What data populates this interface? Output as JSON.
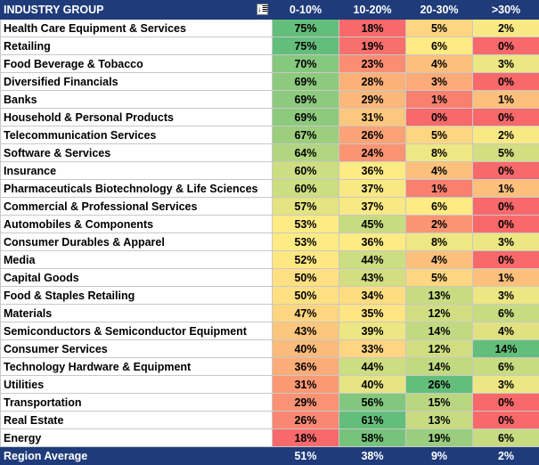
{
  "header": {
    "group_label": "INDUSTRY GROUP",
    "filter_icon": "filter-dropdown-icon",
    "columns": [
      "0-10%",
      "10-20%",
      "20-30%",
      ">30%"
    ]
  },
  "rows": [
    {
      "name": "Health Care Equipment & Services",
      "values": [
        "75%",
        "18%",
        "5%",
        "2%"
      ]
    },
    {
      "name": "Retailing",
      "values": [
        "75%",
        "19%",
        "6%",
        "0%"
      ]
    },
    {
      "name": "Food Beverage & Tobacco",
      "values": [
        "70%",
        "23%",
        "4%",
        "3%"
      ]
    },
    {
      "name": "Diversified Financials",
      "values": [
        "69%",
        "28%",
        "3%",
        "0%"
      ]
    },
    {
      "name": "Banks",
      "values": [
        "69%",
        "29%",
        "1%",
        "1%"
      ]
    },
    {
      "name": "Household & Personal Products",
      "values": [
        "69%",
        "31%",
        "0%",
        "0%"
      ]
    },
    {
      "name": "Telecommunication Services",
      "values": [
        "67%",
        "26%",
        "5%",
        "2%"
      ]
    },
    {
      "name": "Software & Services",
      "values": [
        "64%",
        "24%",
        "8%",
        "5%"
      ]
    },
    {
      "name": "Insurance",
      "values": [
        "60%",
        "36%",
        "4%",
        "0%"
      ]
    },
    {
      "name": "Pharmaceuticals Biotechnology & Life Sciences",
      "values": [
        "60%",
        "37%",
        "1%",
        "1%"
      ]
    },
    {
      "name": "Commercial & Professional Services",
      "values": [
        "57%",
        "37%",
        "6%",
        "0%"
      ]
    },
    {
      "name": "Automobiles & Components",
      "values": [
        "53%",
        "45%",
        "2%",
        "0%"
      ]
    },
    {
      "name": "Consumer Durables & Apparel",
      "values": [
        "53%",
        "36%",
        "8%",
        "3%"
      ]
    },
    {
      "name": "Media",
      "values": [
        "52%",
        "44%",
        "4%",
        "0%"
      ]
    },
    {
      "name": "Capital Goods",
      "values": [
        "50%",
        "43%",
        "5%",
        "1%"
      ]
    },
    {
      "name": "Food & Staples Retailing",
      "values": [
        "50%",
        "34%",
        "13%",
        "3%"
      ]
    },
    {
      "name": "Materials",
      "values": [
        "47%",
        "35%",
        "12%",
        "6%"
      ]
    },
    {
      "name": "Semiconductors & Semiconductor Equipment",
      "values": [
        "43%",
        "39%",
        "14%",
        "4%"
      ]
    },
    {
      "name": "Consumer Services",
      "values": [
        "40%",
        "33%",
        "12%",
        "14%"
      ]
    },
    {
      "name": "Technology Hardware & Equipment",
      "values": [
        "36%",
        "44%",
        "14%",
        "6%"
      ]
    },
    {
      "name": "Utilities",
      "values": [
        "31%",
        "40%",
        "26%",
        "3%"
      ]
    },
    {
      "name": "Transportation",
      "values": [
        "29%",
        "56%",
        "15%",
        "0%"
      ]
    },
    {
      "name": "Real Estate",
      "values": [
        "26%",
        "61%",
        "13%",
        "0%"
      ]
    },
    {
      "name": "Energy",
      "values": [
        "18%",
        "58%",
        "19%",
        "6%"
      ]
    }
  ],
  "footer": {
    "label": "Region Average",
    "values": [
      "51%",
      "38%",
      "9%",
      "2%"
    ]
  },
  "colors": {
    "header_bg": "#1f3b7a",
    "scale_low": "#f8696b",
    "scale_mid": "#ffeb84",
    "scale_high": "#63be7b"
  }
}
